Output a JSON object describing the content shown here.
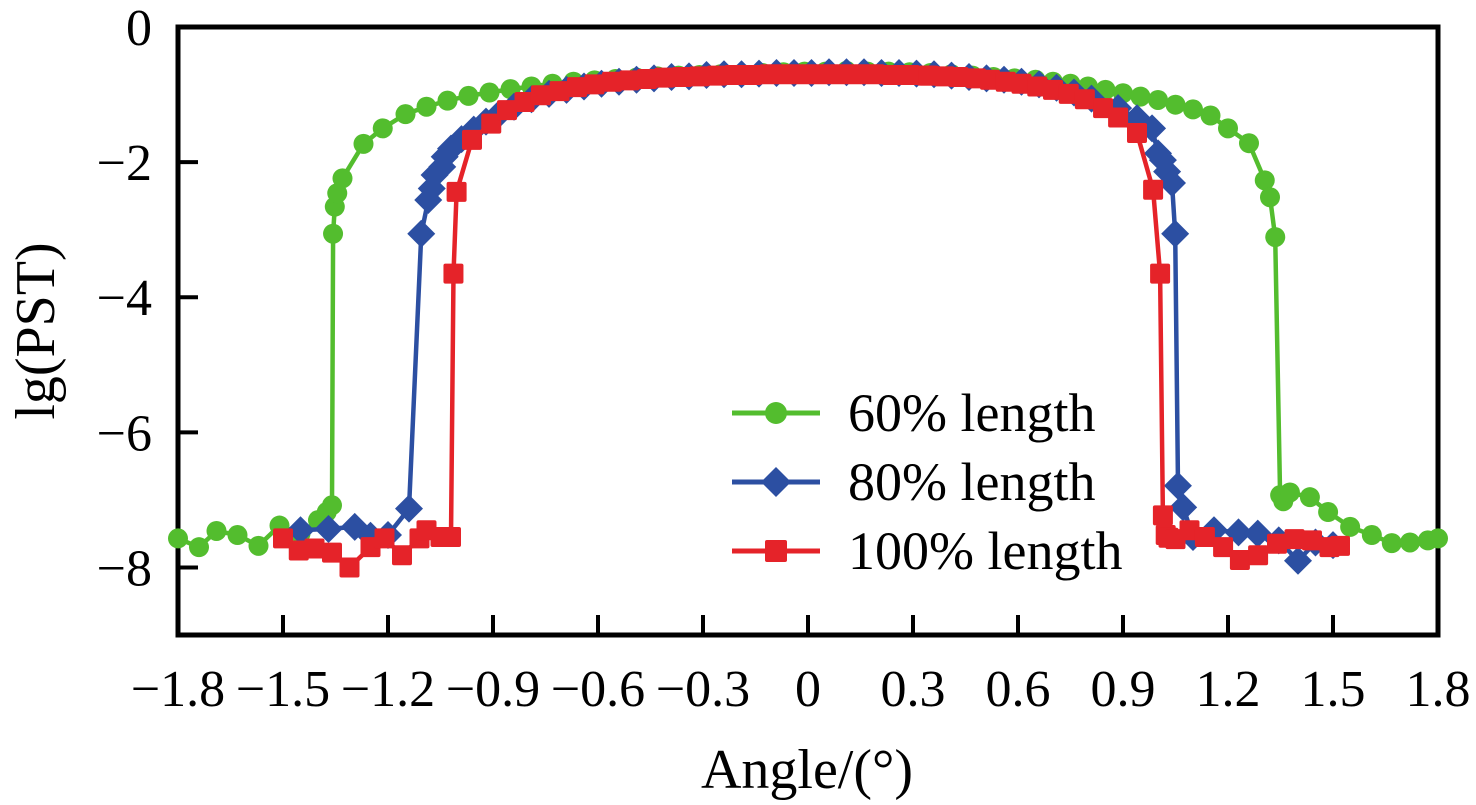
{
  "chart_data": {
    "type": "line",
    "title": "",
    "xlabel": "Angle/(°)",
    "ylabel": "lg(PST)",
    "xlim": [
      -1.8,
      1.8
    ],
    "ylim": [
      -9,
      0
    ],
    "grid": false,
    "legend_position": "inside center-right",
    "frame": "full-box",
    "axis_color": "#000000",
    "x_ticks": [
      -1.8,
      -1.5,
      -1.2,
      -0.9,
      -0.6,
      -0.3,
      0,
      0.3,
      0.6,
      0.9,
      1.2,
      1.5,
      1.8
    ],
    "x_tick_labels": [
      "−1.8",
      "−1.5",
      "−1.2",
      "−0.9",
      "−0.6",
      "−0.3",
      "0",
      "0.3",
      "0.6",
      "0.9",
      "1.2",
      "1.5",
      "1.8"
    ],
    "y_ticks": [
      0,
      -2,
      -4,
      -6,
      -8
    ],
    "y_tick_labels": [
      "0",
      "−2",
      "−4",
      "−6",
      "−8"
    ],
    "series": [
      {
        "id": "60-length",
        "name": "60% length",
        "marker": "circle",
        "color": "#53bd2e",
        "points": [
          [
            -1.8,
            -7.57
          ],
          [
            -1.74,
            -7.7
          ],
          [
            -1.69,
            -7.46
          ],
          [
            -1.63,
            -7.52
          ],
          [
            -1.57,
            -7.68
          ],
          [
            -1.51,
            -7.38
          ],
          [
            -1.45,
            -7.5
          ],
          [
            -1.4,
            -7.3
          ],
          [
            -1.375,
            -7.18
          ],
          [
            -1.36,
            -7.08
          ],
          [
            -1.357,
            -3.06
          ],
          [
            -1.352,
            -2.66
          ],
          [
            -1.345,
            -2.46
          ],
          [
            -1.33,
            -2.24
          ],
          [
            -1.27,
            -1.73
          ],
          [
            -1.215,
            -1.5
          ],
          [
            -1.15,
            -1.29
          ],
          [
            -1.09,
            -1.18
          ],
          [
            -1.03,
            -1.09
          ],
          [
            -0.97,
            -1.02
          ],
          [
            -0.91,
            -0.97
          ],
          [
            -0.85,
            -0.92
          ],
          [
            -0.79,
            -0.88
          ],
          [
            -0.73,
            -0.84
          ],
          [
            -0.67,
            -0.81
          ],
          [
            -0.61,
            -0.79
          ],
          [
            -0.55,
            -0.77
          ],
          [
            -0.49,
            -0.75
          ],
          [
            -0.43,
            -0.73
          ],
          [
            -0.37,
            -0.72
          ],
          [
            -0.31,
            -0.71
          ],
          [
            -0.25,
            -0.7
          ],
          [
            -0.19,
            -0.69
          ],
          [
            -0.13,
            -0.68
          ],
          [
            -0.07,
            -0.67
          ],
          [
            -0.01,
            -0.66
          ],
          [
            0.05,
            -0.66
          ],
          [
            0.11,
            -0.65
          ],
          [
            0.17,
            -0.66
          ],
          [
            0.23,
            -0.66
          ],
          [
            0.29,
            -0.67
          ],
          [
            0.35,
            -0.68
          ],
          [
            0.41,
            -0.7
          ],
          [
            0.47,
            -0.72
          ],
          [
            0.53,
            -0.74
          ],
          [
            0.59,
            -0.76
          ],
          [
            0.65,
            -0.78
          ],
          [
            0.7,
            -0.81
          ],
          [
            0.75,
            -0.84
          ],
          [
            0.8,
            -0.88
          ],
          [
            0.85,
            -0.93
          ],
          [
            0.9,
            -0.98
          ],
          [
            0.95,
            -1.03
          ],
          [
            1.0,
            -1.08
          ],
          [
            1.05,
            -1.15
          ],
          [
            1.1,
            -1.22
          ],
          [
            1.15,
            -1.31
          ],
          [
            1.2,
            -1.5
          ],
          [
            1.26,
            -1.72
          ],
          [
            1.305,
            -2.27
          ],
          [
            1.32,
            -2.52
          ],
          [
            1.335,
            -3.11
          ],
          [
            1.349,
            -6.93
          ],
          [
            1.358,
            -7.02
          ],
          [
            1.377,
            -6.89
          ],
          [
            1.434,
            -6.96
          ],
          [
            1.486,
            -7.18
          ],
          [
            1.549,
            -7.4
          ],
          [
            1.611,
            -7.52
          ],
          [
            1.668,
            -7.64
          ],
          [
            1.72,
            -7.63
          ],
          [
            1.771,
            -7.6
          ],
          [
            1.8,
            -7.57
          ]
        ]
      },
      {
        "id": "80-length",
        "name": "80% length",
        "marker": "diamond",
        "color": "#2c4fa2",
        "points": [
          [
            -1.45,
            -7.45
          ],
          [
            -1.37,
            -7.43
          ],
          [
            -1.295,
            -7.4
          ],
          [
            -1.25,
            -7.53
          ],
          [
            -1.2,
            -7.52
          ],
          [
            -1.14,
            -7.13
          ],
          [
            -1.105,
            -3.06
          ],
          [
            -1.085,
            -2.56
          ],
          [
            -1.075,
            -2.39
          ],
          [
            -1.067,
            -2.19
          ],
          [
            -1.045,
            -2.07
          ],
          [
            -1.038,
            -1.92
          ],
          [
            -1.02,
            -1.8
          ],
          [
            -0.99,
            -1.66
          ],
          [
            -0.955,
            -1.52
          ],
          [
            -0.92,
            -1.4
          ],
          [
            -0.885,
            -1.3
          ],
          [
            -0.84,
            -1.18
          ],
          [
            -0.79,
            -1.07
          ],
          [
            -0.74,
            -0.99
          ],
          [
            -0.69,
            -0.93
          ],
          [
            -0.64,
            -0.88
          ],
          [
            -0.59,
            -0.84
          ],
          [
            -0.54,
            -0.81
          ],
          [
            -0.49,
            -0.78
          ],
          [
            -0.44,
            -0.76
          ],
          [
            -0.39,
            -0.74
          ],
          [
            -0.34,
            -0.73
          ],
          [
            -0.29,
            -0.71
          ],
          [
            -0.24,
            -0.7
          ],
          [
            -0.19,
            -0.7
          ],
          [
            -0.14,
            -0.69
          ],
          [
            -0.09,
            -0.68
          ],
          [
            -0.04,
            -0.68
          ],
          [
            0.01,
            -0.68
          ],
          [
            0.06,
            -0.67
          ],
          [
            0.11,
            -0.67
          ],
          [
            0.16,
            -0.67
          ],
          [
            0.21,
            -0.68
          ],
          [
            0.26,
            -0.68
          ],
          [
            0.31,
            -0.69
          ],
          [
            0.36,
            -0.7
          ],
          [
            0.41,
            -0.72
          ],
          [
            0.46,
            -0.74
          ],
          [
            0.51,
            -0.76
          ],
          [
            0.56,
            -0.78
          ],
          [
            0.61,
            -0.81
          ],
          [
            0.66,
            -0.85
          ],
          [
            0.71,
            -0.9
          ],
          [
            0.76,
            -0.97
          ],
          [
            0.81,
            -1.06
          ],
          [
            0.886,
            -1.2
          ],
          [
            0.94,
            -1.35
          ],
          [
            0.983,
            -1.5
          ],
          [
            1.0,
            -1.87
          ],
          [
            1.014,
            -1.97
          ],
          [
            1.026,
            -2.14
          ],
          [
            1.04,
            -2.31
          ],
          [
            1.049,
            -3.06
          ],
          [
            1.057,
            -6.79
          ],
          [
            1.072,
            -7.11
          ],
          [
            1.1,
            -7.55
          ],
          [
            1.16,
            -7.45
          ],
          [
            1.23,
            -7.48
          ],
          [
            1.285,
            -7.5
          ],
          [
            1.345,
            -7.6
          ],
          [
            1.4,
            -7.9
          ],
          [
            1.45,
            -7.63
          ],
          [
            1.5,
            -7.67
          ]
        ]
      },
      {
        "id": "100-length",
        "name": "100% length",
        "marker": "square",
        "color": "#e52329",
        "points": [
          [
            -1.5,
            -7.57
          ],
          [
            -1.455,
            -7.75
          ],
          [
            -1.41,
            -7.72
          ],
          [
            -1.36,
            -7.78
          ],
          [
            -1.31,
            -8.0
          ],
          [
            -1.25,
            -7.7
          ],
          [
            -1.21,
            -7.57
          ],
          [
            -1.16,
            -7.82
          ],
          [
            -1.11,
            -7.57
          ],
          [
            -1.09,
            -7.45
          ],
          [
            -1.05,
            -7.55
          ],
          [
            -1.02,
            -7.55
          ],
          [
            -1.013,
            -3.65
          ],
          [
            -1.004,
            -2.44
          ],
          [
            -0.96,
            -1.67
          ],
          [
            -0.905,
            -1.43
          ],
          [
            -0.86,
            -1.23
          ],
          [
            -0.81,
            -1.11
          ],
          [
            -0.763,
            -1.01
          ],
          [
            -0.71,
            -0.95
          ],
          [
            -0.66,
            -0.89
          ],
          [
            -0.61,
            -0.85
          ],
          [
            -0.56,
            -0.81
          ],
          [
            -0.51,
            -0.79
          ],
          [
            -0.46,
            -0.77
          ],
          [
            -0.41,
            -0.75
          ],
          [
            -0.36,
            -0.74
          ],
          [
            -0.31,
            -0.73
          ],
          [
            -0.26,
            -0.72
          ],
          [
            -0.21,
            -0.71
          ],
          [
            -0.16,
            -0.71
          ],
          [
            -0.11,
            -0.7
          ],
          [
            -0.06,
            -0.7
          ],
          [
            -0.01,
            -0.7
          ],
          [
            0.04,
            -0.7
          ],
          [
            0.09,
            -0.7
          ],
          [
            0.14,
            -0.7
          ],
          [
            0.19,
            -0.7
          ],
          [
            0.24,
            -0.71
          ],
          [
            0.29,
            -0.71
          ],
          [
            0.34,
            -0.72
          ],
          [
            0.345,
            -0.72
          ],
          [
            0.39,
            -0.73
          ],
          [
            0.43,
            -0.74
          ],
          [
            0.48,
            -0.76
          ],
          [
            0.52,
            -0.78
          ],
          [
            0.565,
            -0.81
          ],
          [
            0.61,
            -0.84
          ],
          [
            0.655,
            -0.88
          ],
          [
            0.7,
            -0.93
          ],
          [
            0.745,
            -0.99
          ],
          [
            0.791,
            -1.07
          ],
          [
            0.843,
            -1.2
          ],
          [
            0.886,
            -1.34
          ],
          [
            0.94,
            -1.57
          ],
          [
            0.986,
            -2.41
          ],
          [
            1.006,
            -3.65
          ],
          [
            1.014,
            -7.23
          ],
          [
            1.022,
            -7.52
          ],
          [
            1.03,
            -7.56
          ],
          [
            1.05,
            -7.58
          ],
          [
            1.09,
            -7.45
          ],
          [
            1.134,
            -7.55
          ],
          [
            1.186,
            -7.7
          ],
          [
            1.234,
            -7.89
          ],
          [
            1.286,
            -7.82
          ],
          [
            1.34,
            -7.65
          ],
          [
            1.39,
            -7.58
          ],
          [
            1.44,
            -7.6
          ],
          [
            1.49,
            -7.7
          ],
          [
            1.52,
            -7.68
          ]
        ]
      }
    ]
  }
}
